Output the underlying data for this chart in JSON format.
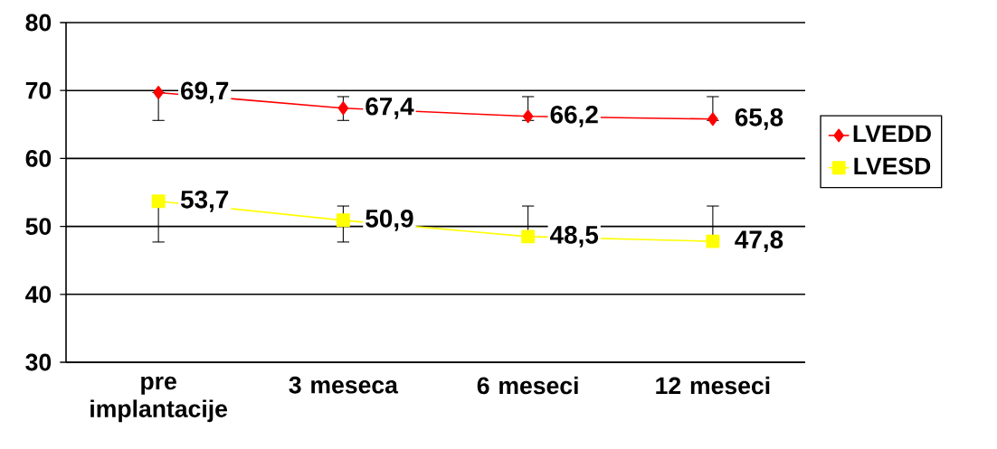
{
  "chart_data": {
    "type": "line",
    "categories": [
      "pre implantacije",
      "3 meseca",
      "6 meseci",
      "12 meseci"
    ],
    "series": [
      {
        "name": "LVEDD",
        "color": "#ff0000",
        "marker": "diamond",
        "values": [
          69.7,
          67.4,
          66.2,
          65.8
        ],
        "value_labels": [
          "69,7",
          "67,4",
          "66,2",
          "65,8"
        ],
        "errors": [
          [
            65.6,
            69.7
          ],
          [
            65.6,
            69.1
          ],
          [
            65.6,
            69.1
          ],
          [
            65.6,
            69.1
          ]
        ]
      },
      {
        "name": "LVESD",
        "color": "#ffff00",
        "marker": "square",
        "values": [
          53.7,
          50.9,
          48.5,
          47.8
        ],
        "value_labels": [
          "53,7",
          "50,9",
          "48,5",
          "47,8"
        ],
        "errors": [
          [
            47.7,
            53.7
          ],
          [
            47.7,
            53.0
          ],
          [
            47.7,
            53.0
          ],
          [
            47.8,
            53.0
          ]
        ]
      }
    ],
    "ylim": [
      30,
      80
    ],
    "yticks": [
      30,
      40,
      50,
      60,
      70,
      80
    ],
    "grid": "y",
    "legend": "right",
    "line_style": "solid"
  }
}
